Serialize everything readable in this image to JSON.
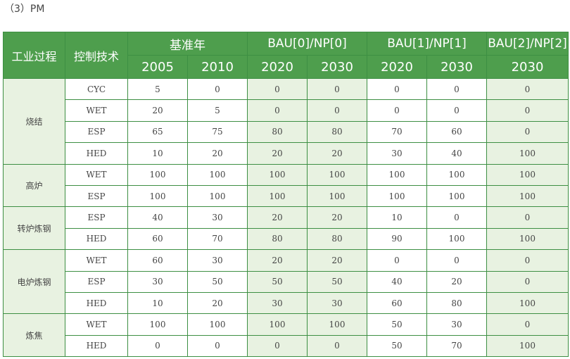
{
  "caption": "（3）PM",
  "header": {
    "process": "工业过程",
    "technology": "控制技术",
    "groups": [
      {
        "label": "基准年",
        "years": [
          "2005",
          "2010"
        ]
      },
      {
        "label": "BAU[0]/NP[0]",
        "years": [
          "2020",
          "2030"
        ]
      },
      {
        "label": "BAU[1]/NP[1]",
        "years": [
          "2020",
          "2030"
        ]
      },
      {
        "label": "BAU[2]/NP[2]",
        "years": [
          "2030"
        ]
      }
    ]
  },
  "processes": [
    {
      "name": "烧结",
      "rows": [
        {
          "tech": "CYC",
          "values": [
            "5",
            "0",
            "0",
            "0",
            "0",
            "0",
            "0"
          ]
        },
        {
          "tech": "WET",
          "values": [
            "20",
            "5",
            "0",
            "0",
            "0",
            "0",
            "0"
          ]
        },
        {
          "tech": "ESP",
          "values": [
            "65",
            "75",
            "80",
            "80",
            "70",
            "60",
            "0"
          ]
        },
        {
          "tech": "HED",
          "values": [
            "10",
            "20",
            "20",
            "20",
            "30",
            "40",
            "100"
          ]
        }
      ]
    },
    {
      "name": "高炉",
      "rows": [
        {
          "tech": "WET",
          "values": [
            "100",
            "100",
            "100",
            "100",
            "100",
            "100",
            "100"
          ]
        },
        {
          "tech": "ESP",
          "values": [
            "100",
            "100",
            "100",
            "100",
            "100",
            "100",
            "100"
          ]
        }
      ]
    },
    {
      "name": "转炉炼钢",
      "rows": [
        {
          "tech": "ESP",
          "values": [
            "40",
            "30",
            "20",
            "20",
            "10",
            "0",
            "0"
          ]
        },
        {
          "tech": "HED",
          "values": [
            "60",
            "70",
            "80",
            "80",
            "90",
            "100",
            "100"
          ]
        }
      ]
    },
    {
      "name": "电炉炼钢",
      "rows": [
        {
          "tech": "WET",
          "values": [
            "60",
            "30",
            "20",
            "20",
            "0",
            "0",
            "0"
          ]
        },
        {
          "tech": "ESP",
          "values": [
            "30",
            "50",
            "50",
            "50",
            "40",
            "20",
            "0"
          ]
        },
        {
          "tech": "HED",
          "values": [
            "10",
            "20",
            "30",
            "30",
            "60",
            "80",
            "100"
          ]
        }
      ]
    },
    {
      "name": "炼焦",
      "rows": [
        {
          "tech": "WET",
          "values": [
            "100",
            "100",
            "100",
            "100",
            "50",
            "30",
            "0"
          ]
        },
        {
          "tech": "HED",
          "values": [
            "0",
            "0",
            "0",
            "0",
            "50",
            "70",
            "100"
          ]
        }
      ]
    }
  ]
}
